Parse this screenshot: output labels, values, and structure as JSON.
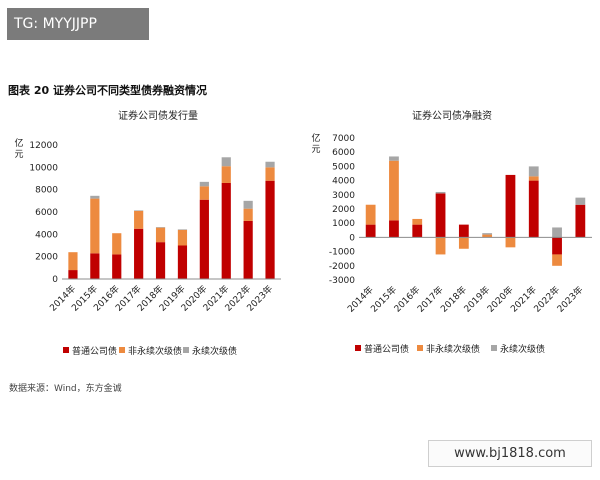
{
  "badge": {
    "text": "TG: MYYJJPP"
  },
  "figure": {
    "title": "图表 20 证券公司不同类型债券融资情况",
    "source": "数据来源：Wind，东方金诚"
  },
  "watermark": {
    "text": "www.bj1818.com"
  },
  "colors": {
    "ordinary": "#c00000",
    "non_perpetual_sub": "#ed8a3f",
    "perpetual_sub": "#a6a6a6"
  },
  "chart_data": [
    {
      "type": "bar",
      "stacked": true,
      "title": "证券公司债发行量",
      "ylabel": "亿元",
      "ylim": [
        0,
        12000
      ],
      "yticks": [
        0,
        2000,
        4000,
        6000,
        8000,
        10000,
        12000
      ],
      "categories": [
        "2014年",
        "2015年",
        "2016年",
        "2017年",
        "2018年",
        "2019年",
        "2020年",
        "2021年",
        "2022年",
        "2023年"
      ],
      "series": [
        {
          "name": "普通公司债",
          "values": [
            800,
            2300,
            2200,
            4500,
            3300,
            3000,
            7100,
            8600,
            5200,
            8800
          ]
        },
        {
          "name": "非永续次级债",
          "values": [
            1600,
            4900,
            1900,
            1600,
            1300,
            1400,
            1200,
            1500,
            1100,
            1200
          ]
        },
        {
          "name": "永续次级债",
          "values": [
            0,
            250,
            0,
            50,
            50,
            50,
            400,
            800,
            700,
            500
          ]
        }
      ],
      "legend": "bottom",
      "grid": false
    },
    {
      "type": "bar",
      "stacked": true,
      "title": "证券公司债净融资",
      "ylabel": "亿元",
      "ylim": [
        -3000,
        7000
      ],
      "yticks": [
        -3000,
        -2000,
        -1000,
        0,
        1000,
        2000,
        3000,
        4000,
        5000,
        6000,
        7000
      ],
      "categories": [
        "2014年",
        "2015年",
        "2016年",
        "2017年",
        "2018年",
        "2019年",
        "2020年",
        "2021年",
        "2022年",
        "2023年"
      ],
      "series": [
        {
          "name": "普通公司债",
          "values": [
            900,
            1200,
            900,
            3100,
            900,
            0,
            4400,
            4000,
            -1200,
            2300
          ]
        },
        {
          "name": "非永续次级债",
          "values": [
            1400,
            4200,
            400,
            -1200,
            -800,
            200,
            -700,
            300,
            -800,
            0
          ]
        },
        {
          "name": "永续次级债",
          "values": [
            0,
            300,
            0,
            100,
            0,
            100,
            0,
            700,
            700,
            500
          ]
        }
      ],
      "legend": "bottom",
      "grid": false
    }
  ]
}
